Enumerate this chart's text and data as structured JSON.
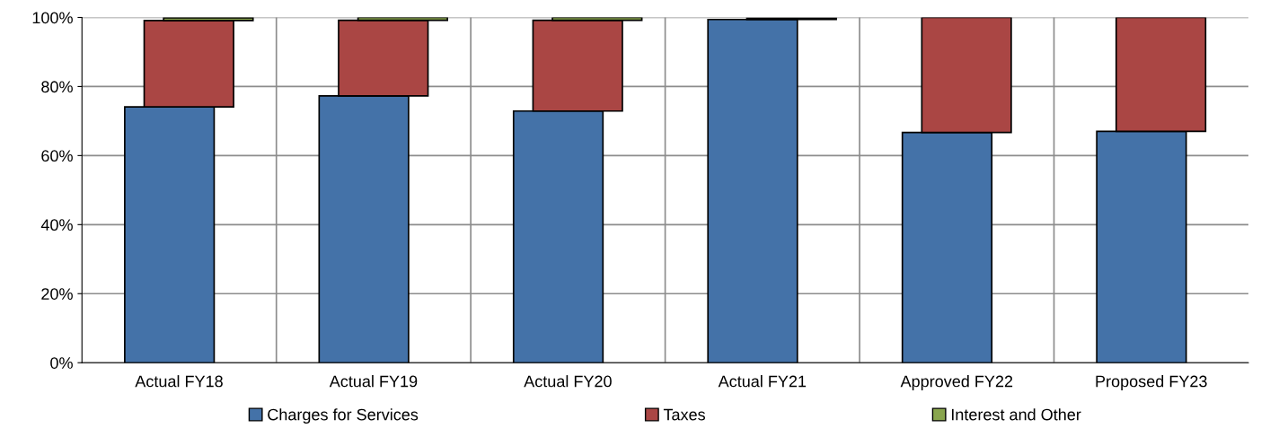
{
  "chart_data": {
    "type": "bar",
    "stacked": true,
    "categories": [
      "Actual FY18",
      "Actual FY19",
      "Actual FY20",
      "Actual FY21",
      "Approved FY22",
      "Proposed FY23"
    ],
    "series": [
      {
        "name": "Charges for Services",
        "color": "#4472a8",
        "values": [
          74.1,
          77.3,
          72.9,
          99.4,
          66.7,
          67.0
        ]
      },
      {
        "name": "Taxes",
        "color": "#aa4644",
        "values": [
          25.0,
          21.9,
          26.3,
          null,
          33.3,
          33.0
        ]
      },
      {
        "name": "Interest and Other",
        "color": "#89a54e",
        "values": [
          0.8,
          0.8,
          0.8,
          0.4,
          null,
          null
        ]
      }
    ],
    "ylim": [
      0,
      100
    ],
    "yticks": [
      {
        "value": 0,
        "label": "0%"
      },
      {
        "value": 20,
        "label": "20%"
      },
      {
        "value": 40,
        "label": "40%"
      },
      {
        "value": 60,
        "label": "60%"
      },
      {
        "value": 80,
        "label": "80%"
      },
      {
        "value": 100,
        "label": "100%"
      }
    ],
    "grid": true,
    "legend": "bottom"
  }
}
